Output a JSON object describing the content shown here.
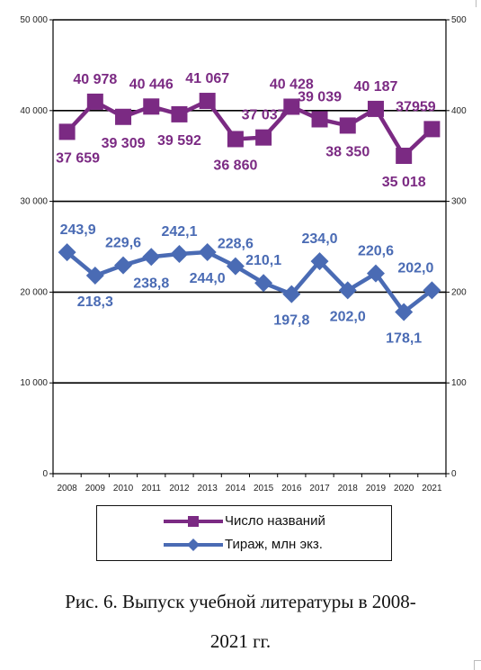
{
  "chart_data": {
    "type": "line",
    "x": [
      "2008",
      "2009",
      "2010",
      "2011",
      "2012",
      "2013",
      "2014",
      "2015",
      "2016",
      "2017",
      "2018",
      "2019",
      "2020",
      "2021"
    ],
    "y_left": {
      "ticks": [
        "0",
        "10 000",
        "20 000",
        "30 000",
        "40 000",
        "50 000"
      ],
      "range": [
        0,
        50000
      ]
    },
    "y_right": {
      "ticks": [
        "0",
        "100",
        "200",
        "300",
        "400",
        "500"
      ],
      "range": [
        0,
        500
      ]
    },
    "grid": "horizontal",
    "legend_position": "bottom",
    "series": [
      {
        "name": "Число названий",
        "axis": "left",
        "color": "#7b2a83",
        "marker": "square",
        "values": [
          37659,
          40978,
          39309,
          40446,
          39592,
          41067,
          36860,
          37037,
          40428,
          39039,
          38350,
          40187,
          35018,
          37959
        ],
        "labels": [
          "37 659",
          "40 978",
          "39 309",
          "40 446",
          "39 592",
          "41 067",
          "36 860",
          "37 037",
          "40 428",
          "39 039",
          "38 350",
          "40 187",
          "35 018",
          "37959"
        ]
      },
      {
        "name": "Тираж, млн экз.",
        "axis": "right",
        "color": "#4a6bb4",
        "marker": "diamond",
        "values": [
          243.9,
          218.3,
          229.6,
          238.8,
          242.1,
          244.0,
          228.6,
          210.1,
          197.8,
          234.0,
          202.0,
          220.6,
          178.1,
          202.0
        ],
        "labels": [
          "243,9",
          "218,3",
          "229,6",
          "238,8",
          "242,1",
          "244,0",
          "228,6",
          "210,1",
          "197,8",
          "234,0",
          "202,0",
          "220,6",
          "178,1",
          "202,0"
        ]
      }
    ]
  },
  "legend": {
    "items": [
      {
        "label": "Число названий",
        "color": "#7b2a83",
        "marker": "square-icon"
      },
      {
        "label": "Тираж, млн экз.",
        "color": "#4a6bb4",
        "marker": "diamond-icon"
      }
    ]
  },
  "caption": {
    "line1": "Рис. 6. Выпуск учебной литературы в 2008-",
    "line2": "2021 гг."
  }
}
